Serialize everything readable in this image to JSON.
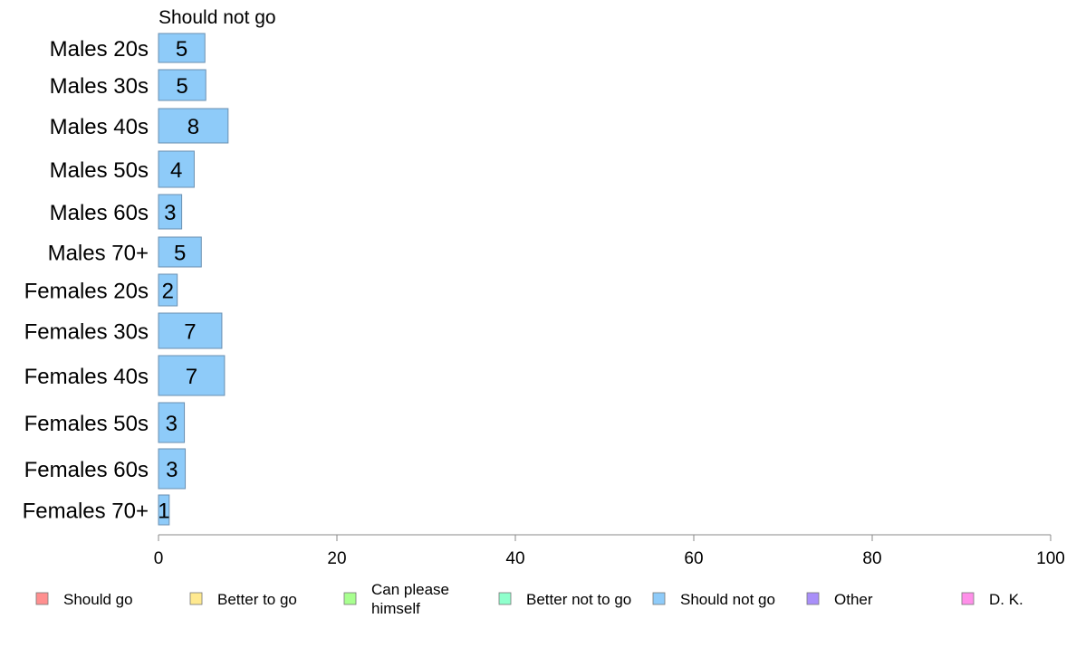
{
  "chart_data": {
    "type": "bar",
    "orientation": "horizontal",
    "title": "Should not go",
    "xlim": [
      0,
      100
    ],
    "xticks": [
      0,
      20,
      40,
      60,
      80,
      100
    ],
    "grid": false,
    "categories": [
      "Males 20s",
      "Males 30s",
      "Males 40s",
      "Males 50s",
      "Males 60s",
      "Males 70+",
      "Females 20s",
      "Females 30s",
      "Females 40s",
      "Females 50s",
      "Females 60s",
      "Females 70+"
    ],
    "values": [
      5.2,
      5.3,
      7.8,
      4.0,
      2.6,
      4.8,
      2.1,
      7.1,
      7.4,
      2.9,
      3.0,
      1.2
    ],
    "value_labels": [
      "5",
      "5",
      "8",
      "4",
      "3",
      "5",
      "2",
      "7",
      "7",
      "3",
      "3",
      "1"
    ],
    "series_color": "#8ecbf9",
    "bar_stroke": "#6a8fb0",
    "legend_placement": "bottom",
    "legend": [
      {
        "label": "Should go",
        "color": "#ff8f8f"
      },
      {
        "label": "Better to go",
        "color": "#ffe98f"
      },
      {
        "label": "Can please himself",
        "lines": [
          "Can please",
          "himself"
        ],
        "color": "#a8ff8f"
      },
      {
        "label": "Better not to go",
        "color": "#8fffcc"
      },
      {
        "label": "Should not go",
        "color": "#8ecbf9"
      },
      {
        "label": "Other",
        "color": "#a98ff9"
      },
      {
        "label": "D. K.",
        "color": "#ff8fe9"
      }
    ]
  }
}
